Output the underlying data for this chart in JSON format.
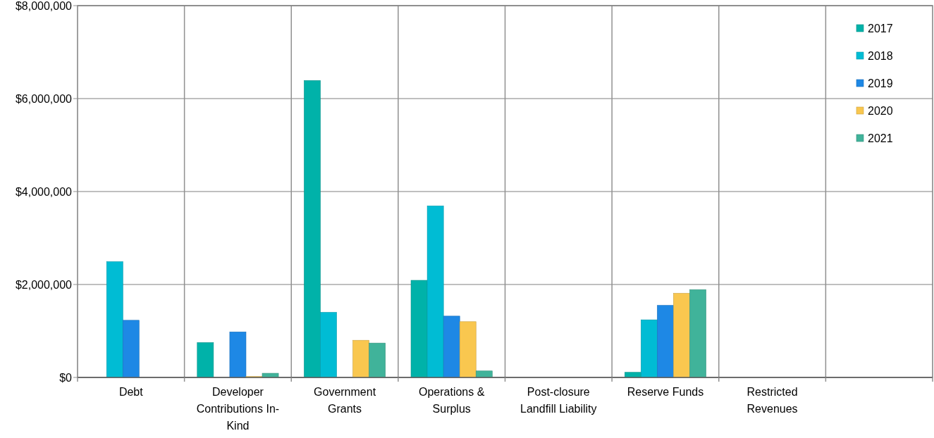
{
  "chart_data": {
    "type": "bar",
    "categories": [
      "Debt",
      "Developer Contributions In-Kind",
      "Government Grants",
      "Operations & Surplus",
      "Post-closure Landfill Liability",
      "Reserve Funds",
      "Restricted Revenues",
      null
    ],
    "series": [
      {
        "name": "2017",
        "color": "#00b2a9",
        "values": [
          0,
          750000,
          6390000,
          2090000,
          0,
          110000,
          0,
          0
        ]
      },
      {
        "name": "2018",
        "color": "#00bcd4",
        "values": [
          2490000,
          0,
          1400000,
          3690000,
          0,
          1240000,
          0,
          0
        ]
      },
      {
        "name": "2019",
        "color": "#1e88e5",
        "values": [
          1230000,
          980000,
          0,
          1320000,
          0,
          1550000,
          0,
          0
        ]
      },
      {
        "name": "2020",
        "color": "#f9c74f",
        "values": [
          0,
          20000,
          800000,
          1200000,
          0,
          1810000,
          0,
          0
        ]
      },
      {
        "name": "2021",
        "color": "#40b39a",
        "values": [
          0,
          90000,
          740000,
          140000,
          0,
          1890000,
          0,
          0
        ]
      }
    ],
    "ylim": [
      0,
      8000000
    ],
    "yticks": [
      {
        "value": 0,
        "label": "$0"
      },
      {
        "value": 2000000,
        "label": "$2,000,000"
      },
      {
        "value": 4000000,
        "label": "$4,000,000"
      },
      {
        "value": 6000000,
        "label": "$6,000,000"
      },
      {
        "value": 8000000,
        "label": "$8,000,000"
      }
    ],
    "grid": true,
    "legend": "top right"
  }
}
